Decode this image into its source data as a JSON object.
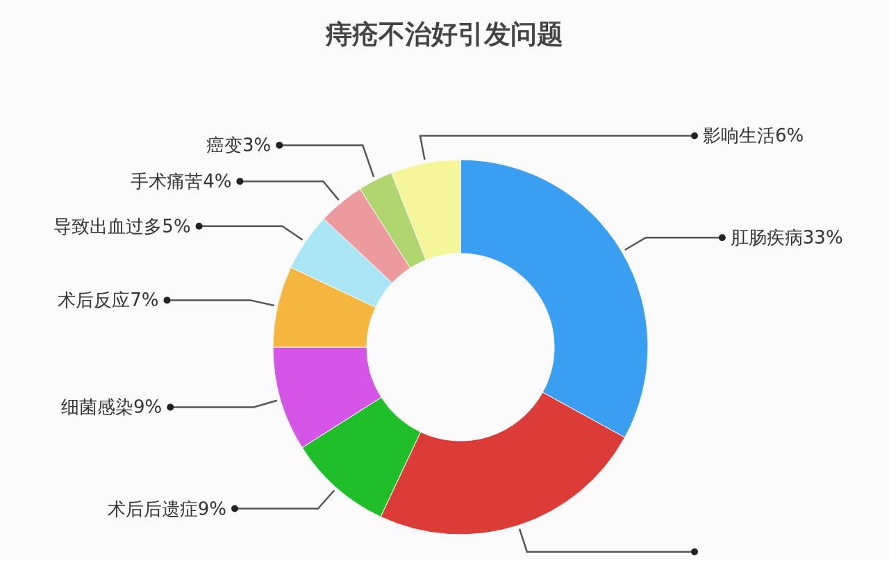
{
  "chart_data": {
    "type": "donut",
    "title": "痔疮不治好引发问题",
    "categories": [
      "肛肠疾病",
      null,
      "术后后遗症",
      "细菌感染",
      "术后反应",
      "导致出血过多",
      "手术痛苦",
      "癌变",
      "影响生活"
    ],
    "values": [
      33,
      24,
      9,
      9,
      7,
      5,
      4,
      3,
      6
    ],
    "value_labels": [
      "33%",
      null,
      "9%",
      "9%",
      "7%",
      "5%",
      "4%",
      "3%",
      "6%"
    ],
    "colors": [
      "#3a9ff0",
      "#dc3c38",
      "#1fbf2a",
      "#d455e6",
      "#f5b640",
      "#a8e6f5",
      "#eb9a9e",
      "#b1d670",
      "#f5f59a"
    ]
  }
}
